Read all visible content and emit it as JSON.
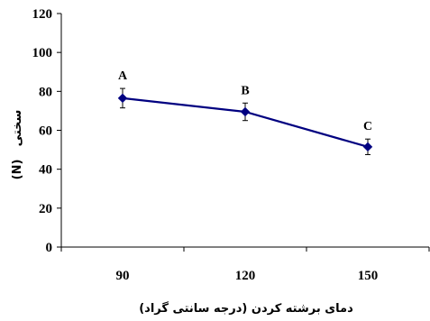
{
  "chart_data": {
    "type": "line",
    "x": [
      "90",
      "120",
      "150"
    ],
    "series": [
      {
        "values": [
          76.5,
          69.5,
          51.5
        ],
        "error": [
          5.0,
          4.5,
          4.0
        ],
        "labels": [
          "A",
          "B",
          "C"
        ],
        "color": "#000080"
      }
    ],
    "xlabel": "دمای برشته کردن (درجه سانتی گراد)",
    "ylabel_unit": "(N)",
    "ylabel_text": "سختی",
    "ylim": [
      0,
      120
    ],
    "yticks": [
      "0",
      "20",
      "40",
      "60",
      "80",
      "100",
      "120"
    ],
    "grid": false,
    "legend": "none"
  }
}
